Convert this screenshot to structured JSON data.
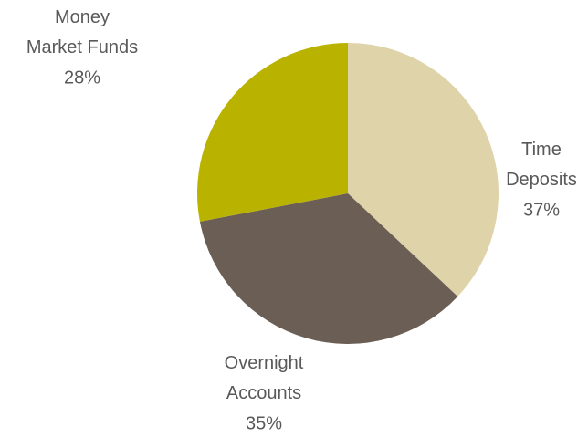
{
  "chart_data": {
    "type": "pie",
    "categories": [
      "Time Deposits",
      "Overnight Accounts",
      "Money Market Funds"
    ],
    "values": [
      37,
      35,
      28
    ],
    "value_labels": [
      "37%",
      "35%",
      "28%"
    ],
    "colors": [
      "#dfd3a9",
      "#6b5f55",
      "#b9b300"
    ]
  }
}
